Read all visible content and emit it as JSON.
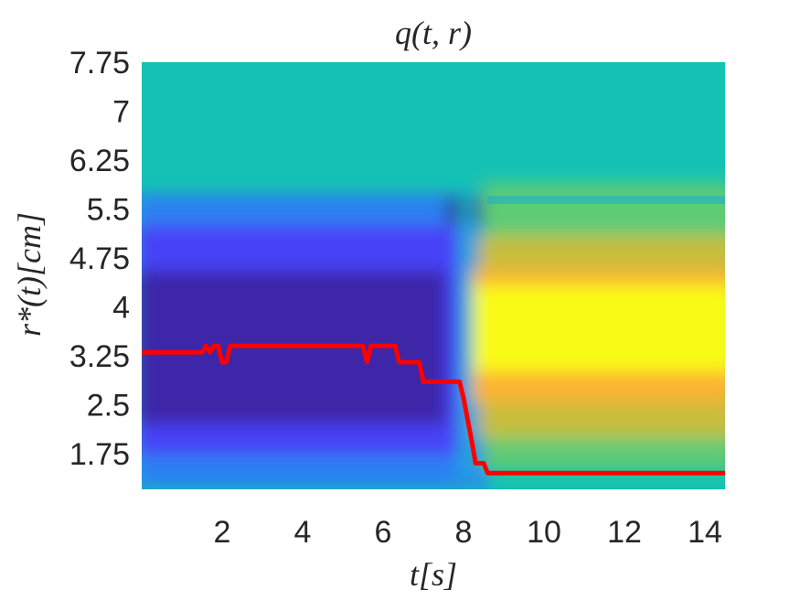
{
  "chart_data": {
    "type": "heatmap",
    "title": "q(t, r)",
    "xlabel": "t[s]",
    "ylabel": "r*(t)[cm]",
    "xlim": [
      0,
      14.5
    ],
    "ylim": [
      1.2,
      7.75
    ],
    "xticks": [
      2,
      4,
      6,
      8,
      10,
      12,
      14
    ],
    "xtick_labels": [
      "2",
      "4",
      "6",
      "8",
      "10",
      "12",
      "14"
    ],
    "yticks": [
      1.75,
      2.5,
      3.25,
      4,
      4.75,
      5.5,
      6.25,
      7,
      7.75
    ],
    "ytick_labels": [
      "1.75",
      "2.5",
      "3.25",
      "4",
      "4.75",
      "5.5",
      "6.25",
      "7",
      "7.75"
    ],
    "colormap": [
      "#3e26a8",
      "#4743f8",
      "#2b81f2",
      "#18aed3",
      "#16c2b0",
      "#5fcb74",
      "#c7be3e",
      "#fbb430",
      "#f9fb15"
    ],
    "background_color": "#14c2b4",
    "line_color": "#ff0000",
    "series": [
      {
        "name": "r*(t)",
        "t": [
          0,
          1.5,
          1.6,
          1.7,
          1.8,
          1.9,
          2.0,
          2.1,
          2.2,
          5.5,
          5.6,
          5.7,
          6.3,
          6.4,
          6.9,
          7.0,
          7.9,
          8.0,
          8.2,
          8.3,
          8.5,
          8.6,
          14.5
        ],
        "r": [
          3.3,
          3.3,
          3.4,
          3.3,
          3.4,
          3.4,
          3.15,
          3.15,
          3.4,
          3.4,
          3.15,
          3.4,
          3.4,
          3.15,
          3.15,
          2.85,
          2.85,
          2.6,
          1.95,
          1.6,
          1.6,
          1.45,
          1.45
        ]
      }
    ]
  }
}
